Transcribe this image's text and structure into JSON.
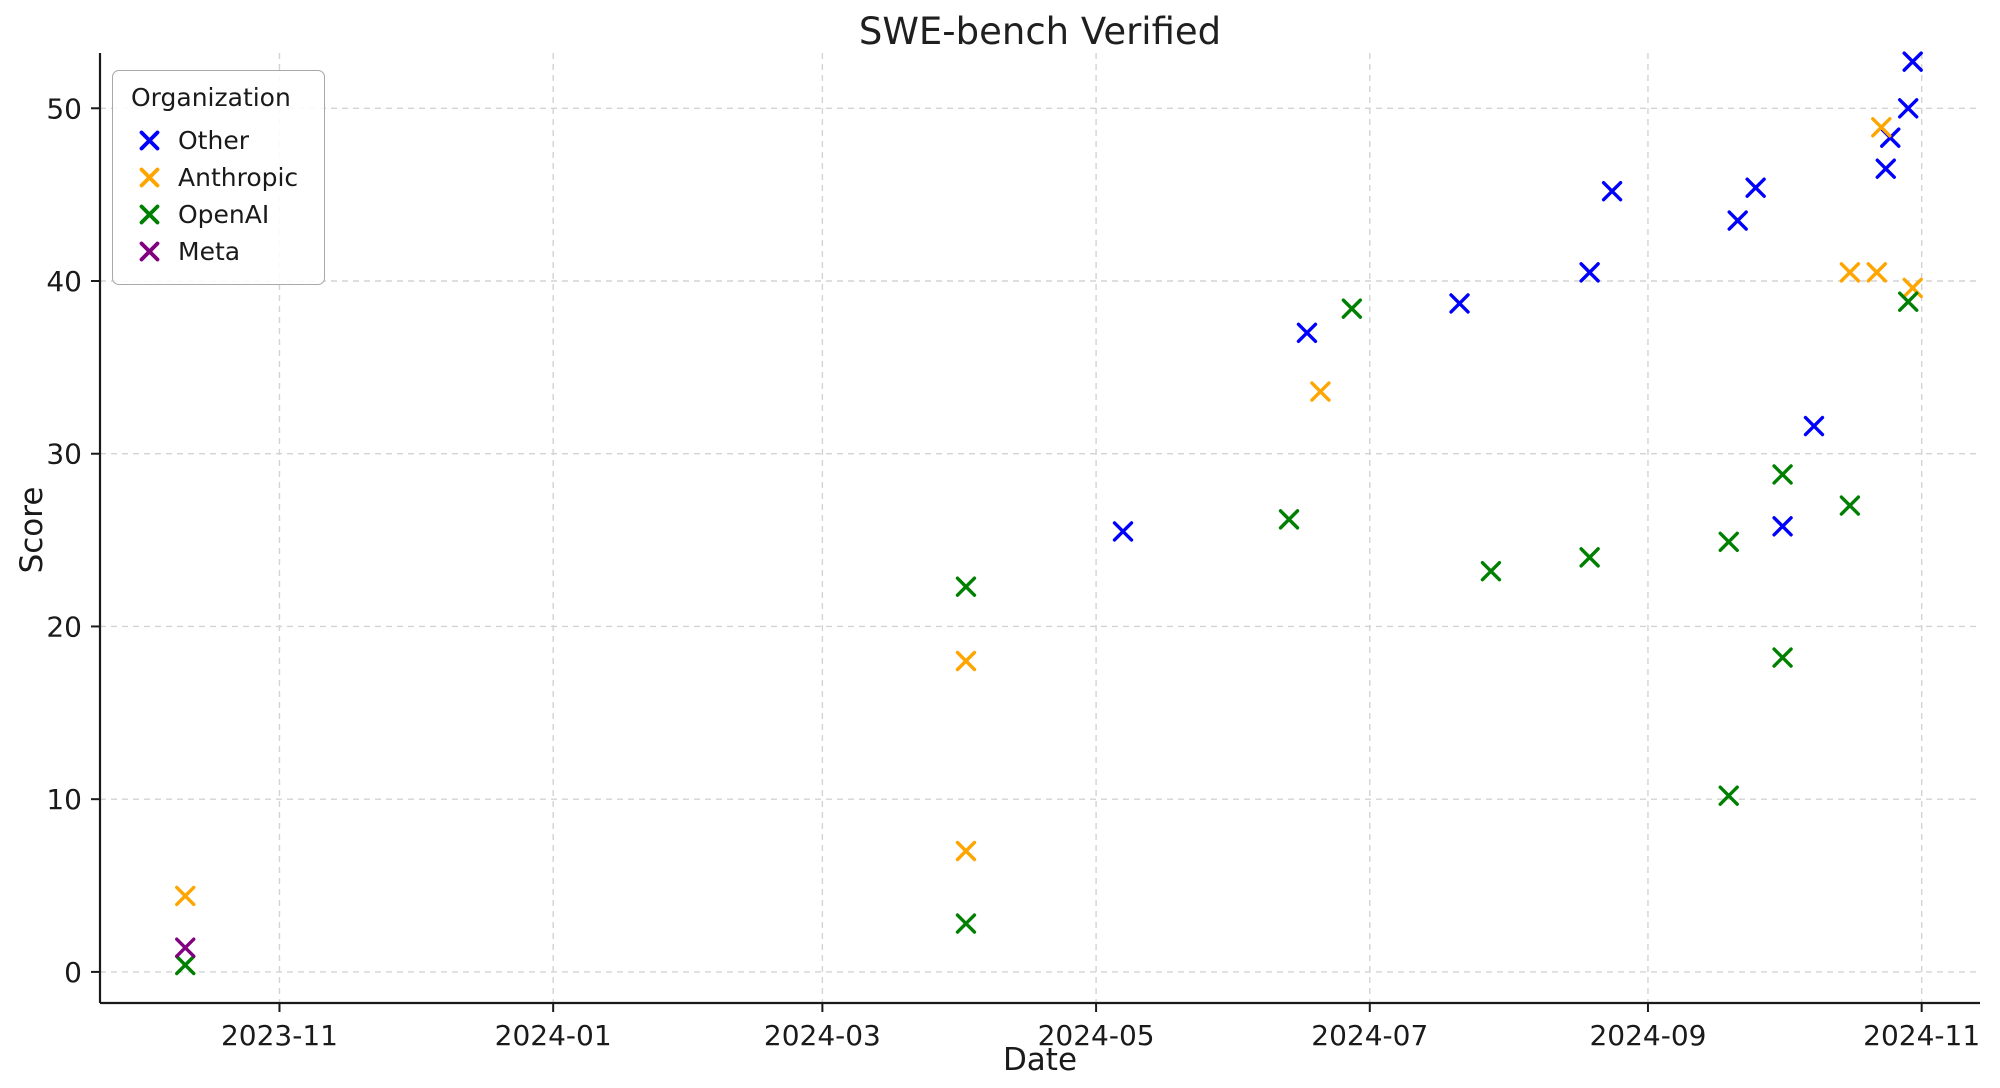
{
  "chart_data": {
    "type": "scatter",
    "title": "SWE-bench Verified",
    "xlabel": "Date",
    "ylabel": "Score",
    "legend_title": "Organization",
    "legend_position": "upper left",
    "marker": "x",
    "grid": true,
    "grid_style": "dashed",
    "xlim": [
      "2023-09-22",
      "2024-11-14"
    ],
    "ylim": [
      -1.8,
      53.2
    ],
    "x_ticks": [
      {
        "label": "2023-11",
        "date": "2023-11-01"
      },
      {
        "label": "2024-01",
        "date": "2024-01-01"
      },
      {
        "label": "2024-03",
        "date": "2024-03-01"
      },
      {
        "label": "2024-05",
        "date": "2024-05-01"
      },
      {
        "label": "2024-07",
        "date": "2024-07-01"
      },
      {
        "label": "2024-09",
        "date": "2024-09-01"
      },
      {
        "label": "2024-11",
        "date": "2024-11-01"
      }
    ],
    "y_ticks": [
      0,
      10,
      20,
      30,
      40,
      50
    ],
    "series": [
      {
        "name": "Other",
        "color": "#0000ff",
        "points": [
          [
            "2024-05-07",
            25.5
          ],
          [
            "2024-06-17",
            37.0
          ],
          [
            "2024-07-21",
            38.7
          ],
          [
            "2024-08-19",
            40.5
          ],
          [
            "2024-08-24",
            45.2
          ],
          [
            "2024-09-21",
            43.5
          ],
          [
            "2024-09-25",
            45.4
          ],
          [
            "2024-10-01",
            25.8
          ],
          [
            "2024-10-08",
            31.6
          ],
          [
            "2024-10-24",
            46.5
          ],
          [
            "2024-10-25",
            48.3
          ],
          [
            "2024-10-29",
            50.0
          ],
          [
            "2024-10-30",
            52.7
          ]
        ]
      },
      {
        "name": "Anthropic",
        "color": "#ffa500",
        "points": [
          [
            "2023-10-11",
            4.4
          ],
          [
            "2024-04-02",
            18.0
          ],
          [
            "2024-04-02",
            7.0
          ],
          [
            "2024-06-20",
            33.6
          ],
          [
            "2024-10-16",
            40.5
          ],
          [
            "2024-10-22",
            40.5
          ],
          [
            "2024-10-23",
            48.9
          ],
          [
            "2024-10-30",
            39.6
          ]
        ]
      },
      {
        "name": "OpenAI",
        "color": "#008000",
        "points": [
          [
            "2023-10-11",
            0.4
          ],
          [
            "2024-04-02",
            22.3
          ],
          [
            "2024-04-02",
            2.8
          ],
          [
            "2024-06-13",
            26.2
          ],
          [
            "2024-06-27",
            38.4
          ],
          [
            "2024-07-28",
            23.2
          ],
          [
            "2024-08-19",
            24.0
          ],
          [
            "2024-09-19",
            24.9
          ],
          [
            "2024-09-19",
            10.2
          ],
          [
            "2024-10-01",
            28.8
          ],
          [
            "2024-10-01",
            18.2
          ],
          [
            "2024-10-16",
            27.0
          ],
          [
            "2024-10-29",
            38.8
          ]
        ]
      },
      {
        "name": "Meta",
        "color": "#800080",
        "points": [
          [
            "2023-10-11",
            1.4
          ]
        ]
      }
    ]
  }
}
